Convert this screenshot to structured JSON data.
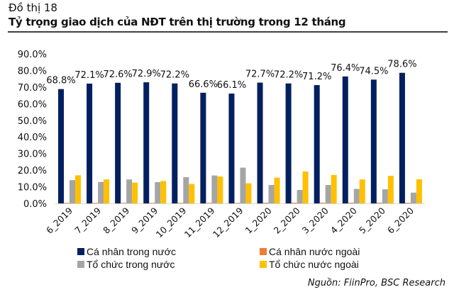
{
  "header": {
    "figure_label": "Đồ thị 18",
    "title": "Tỷ trọng giao dịch của NĐT trên thị trường trong 12 tháng"
  },
  "source": "Nguồn: FiinPro, BSC Research",
  "chart_data": {
    "type": "bar",
    "title": "Tỷ trọng giao dịch của NĐT trên thị trường trong 12 tháng",
    "xlabel": "",
    "ylabel": "",
    "ylim": [
      0,
      90
    ],
    "yticks": [
      "0.0%",
      "10.0%",
      "20.0%",
      "30.0%",
      "40.0%",
      "50.0%",
      "60.0%",
      "70.0%",
      "80.0%",
      "90.0%"
    ],
    "grid": false,
    "legend_position": "bottom",
    "categories": [
      "6_2019",
      "7_2019",
      "8_2019",
      "9_2019",
      "10_2019",
      "11_2019",
      "12_2019",
      "1_2020",
      "2_2020",
      "3_2020",
      "4_2020",
      "5_2020",
      "6_2020"
    ],
    "series": [
      {
        "name": "Cá nhân trong nước",
        "color": "#002060",
        "values": [
          68.8,
          72.1,
          72.6,
          72.9,
          72.2,
          66.6,
          66.1,
          72.7,
          72.2,
          71.2,
          76.4,
          74.5,
          78.6
        ],
        "data_labels": [
          "68.8%",
          "72.1%",
          "72.6%",
          "72.9%",
          "72.2%",
          "66.6%",
          "66.1%",
          "72.7%",
          "72.2%",
          "71.2%",
          "76.4%",
          "74.5%",
          "78.6%"
        ]
      },
      {
        "name": "Cá nhân nước ngoài",
        "color": "#ED7D31",
        "values": [
          0.3,
          0.3,
          0.3,
          0.3,
          0.3,
          0.3,
          0.3,
          0.4,
          0.4,
          0.4,
          0.4,
          0.4,
          0.4
        ]
      },
      {
        "name": "Tổ chức trong nước",
        "color": "#A5A5A5",
        "values": [
          14.0,
          12.9,
          14.4,
          12.8,
          15.8,
          16.8,
          21.5,
          11.1,
          8.1,
          11.1,
          8.7,
          8.5,
          6.5
        ]
      },
      {
        "name": "Tổ chức nước ngoài",
        "color": "#FFC000",
        "values": [
          16.9,
          14.4,
          12.5,
          13.5,
          11.7,
          16.2,
          12.1,
          15.5,
          19.2,
          17.1,
          14.4,
          16.6,
          14.5
        ]
      }
    ]
  }
}
